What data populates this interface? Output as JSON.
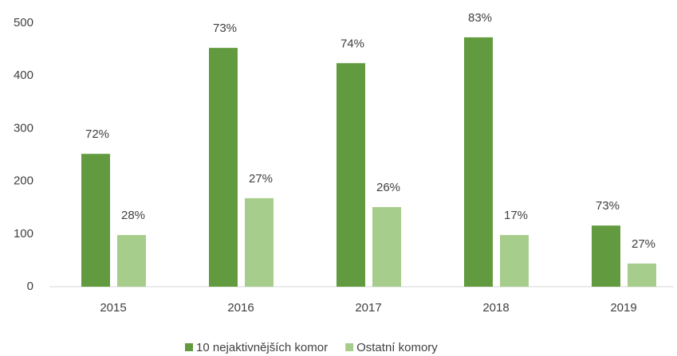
{
  "chart_data": {
    "type": "bar",
    "categories": [
      "2015",
      "2016",
      "2017",
      "2018",
      "2019"
    ],
    "series": [
      {
        "name": "10 nejaktivnějších komor",
        "color": "#629b3f",
        "values": [
          252,
          453,
          424,
          473,
          116
        ],
        "shares": [
          "72%",
          "73%",
          "74%",
          "83%",
          "73%"
        ]
      },
      {
        "name": "Ostatní komory",
        "color": "#a7cd8d",
        "values": [
          98,
          168,
          151,
          98,
          44
        ],
        "shares": [
          "28%",
          "27%",
          "26%",
          "17%",
          "27%"
        ]
      }
    ],
    "ylim": [
      0,
      500
    ],
    "yticks": [
      0,
      100,
      200,
      300,
      400,
      500
    ],
    "grid": false,
    "legend": "bottom"
  }
}
